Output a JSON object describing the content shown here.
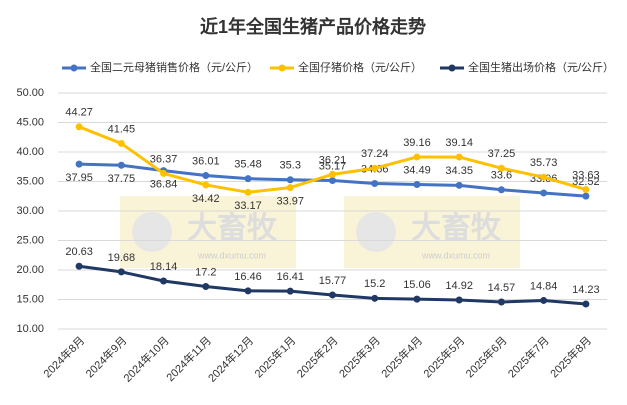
{
  "chart_data": {
    "type": "line",
    "title": "近1年全国生猪产品价格走势",
    "categories": [
      "2024年8月",
      "2024年9月",
      "2024年10月",
      "2024年11月",
      "2024年12月",
      "2025年1月",
      "2025年2月",
      "2025年3月",
      "2025年4月",
      "2025年5月",
      "2025年6月",
      "2025年7月",
      "2025年8月"
    ],
    "series": [
      {
        "name": "全国二元母猪销售价格（元/公斤）",
        "color": "#4472c4",
        "values": [
          37.95,
          37.75,
          36.84,
          36.01,
          35.48,
          35.3,
          35.17,
          34.66,
          34.49,
          34.35,
          33.6,
          33.06,
          32.52
        ]
      },
      {
        "name": "全国仔猪价格（元/公斤）",
        "color": "#ffc000",
        "values": [
          44.27,
          41.45,
          36.37,
          34.42,
          33.17,
          33.97,
          36.21,
          37.24,
          39.16,
          39.14,
          37.25,
          35.73,
          33.63
        ]
      },
      {
        "name": "全国生猪出场价格（元/公斤）",
        "color": "#203864",
        "values": [
          20.63,
          19.68,
          18.14,
          17.2,
          16.46,
          16.41,
          15.77,
          15.2,
          15.06,
          14.92,
          14.57,
          14.84,
          14.23
        ]
      }
    ],
    "ylim": [
      10,
      50
    ],
    "yticks": [
      {
        "value": 10,
        "label": "10.00"
      },
      {
        "value": 15,
        "label": "15.00"
      },
      {
        "value": 20,
        "label": "20.00"
      },
      {
        "value": 25,
        "label": "25.00"
      },
      {
        "value": 30,
        "label": "30.00"
      },
      {
        "value": 35,
        "label": "35.00"
      },
      {
        "value": 40,
        "label": "40.00"
      },
      {
        "value": 45,
        "label": "45.00"
      },
      {
        "value": 50,
        "label": "50.00"
      }
    ],
    "grid": true,
    "watermark": {
      "brand": "大畜牧",
      "url": "www.dxumu.com"
    }
  }
}
